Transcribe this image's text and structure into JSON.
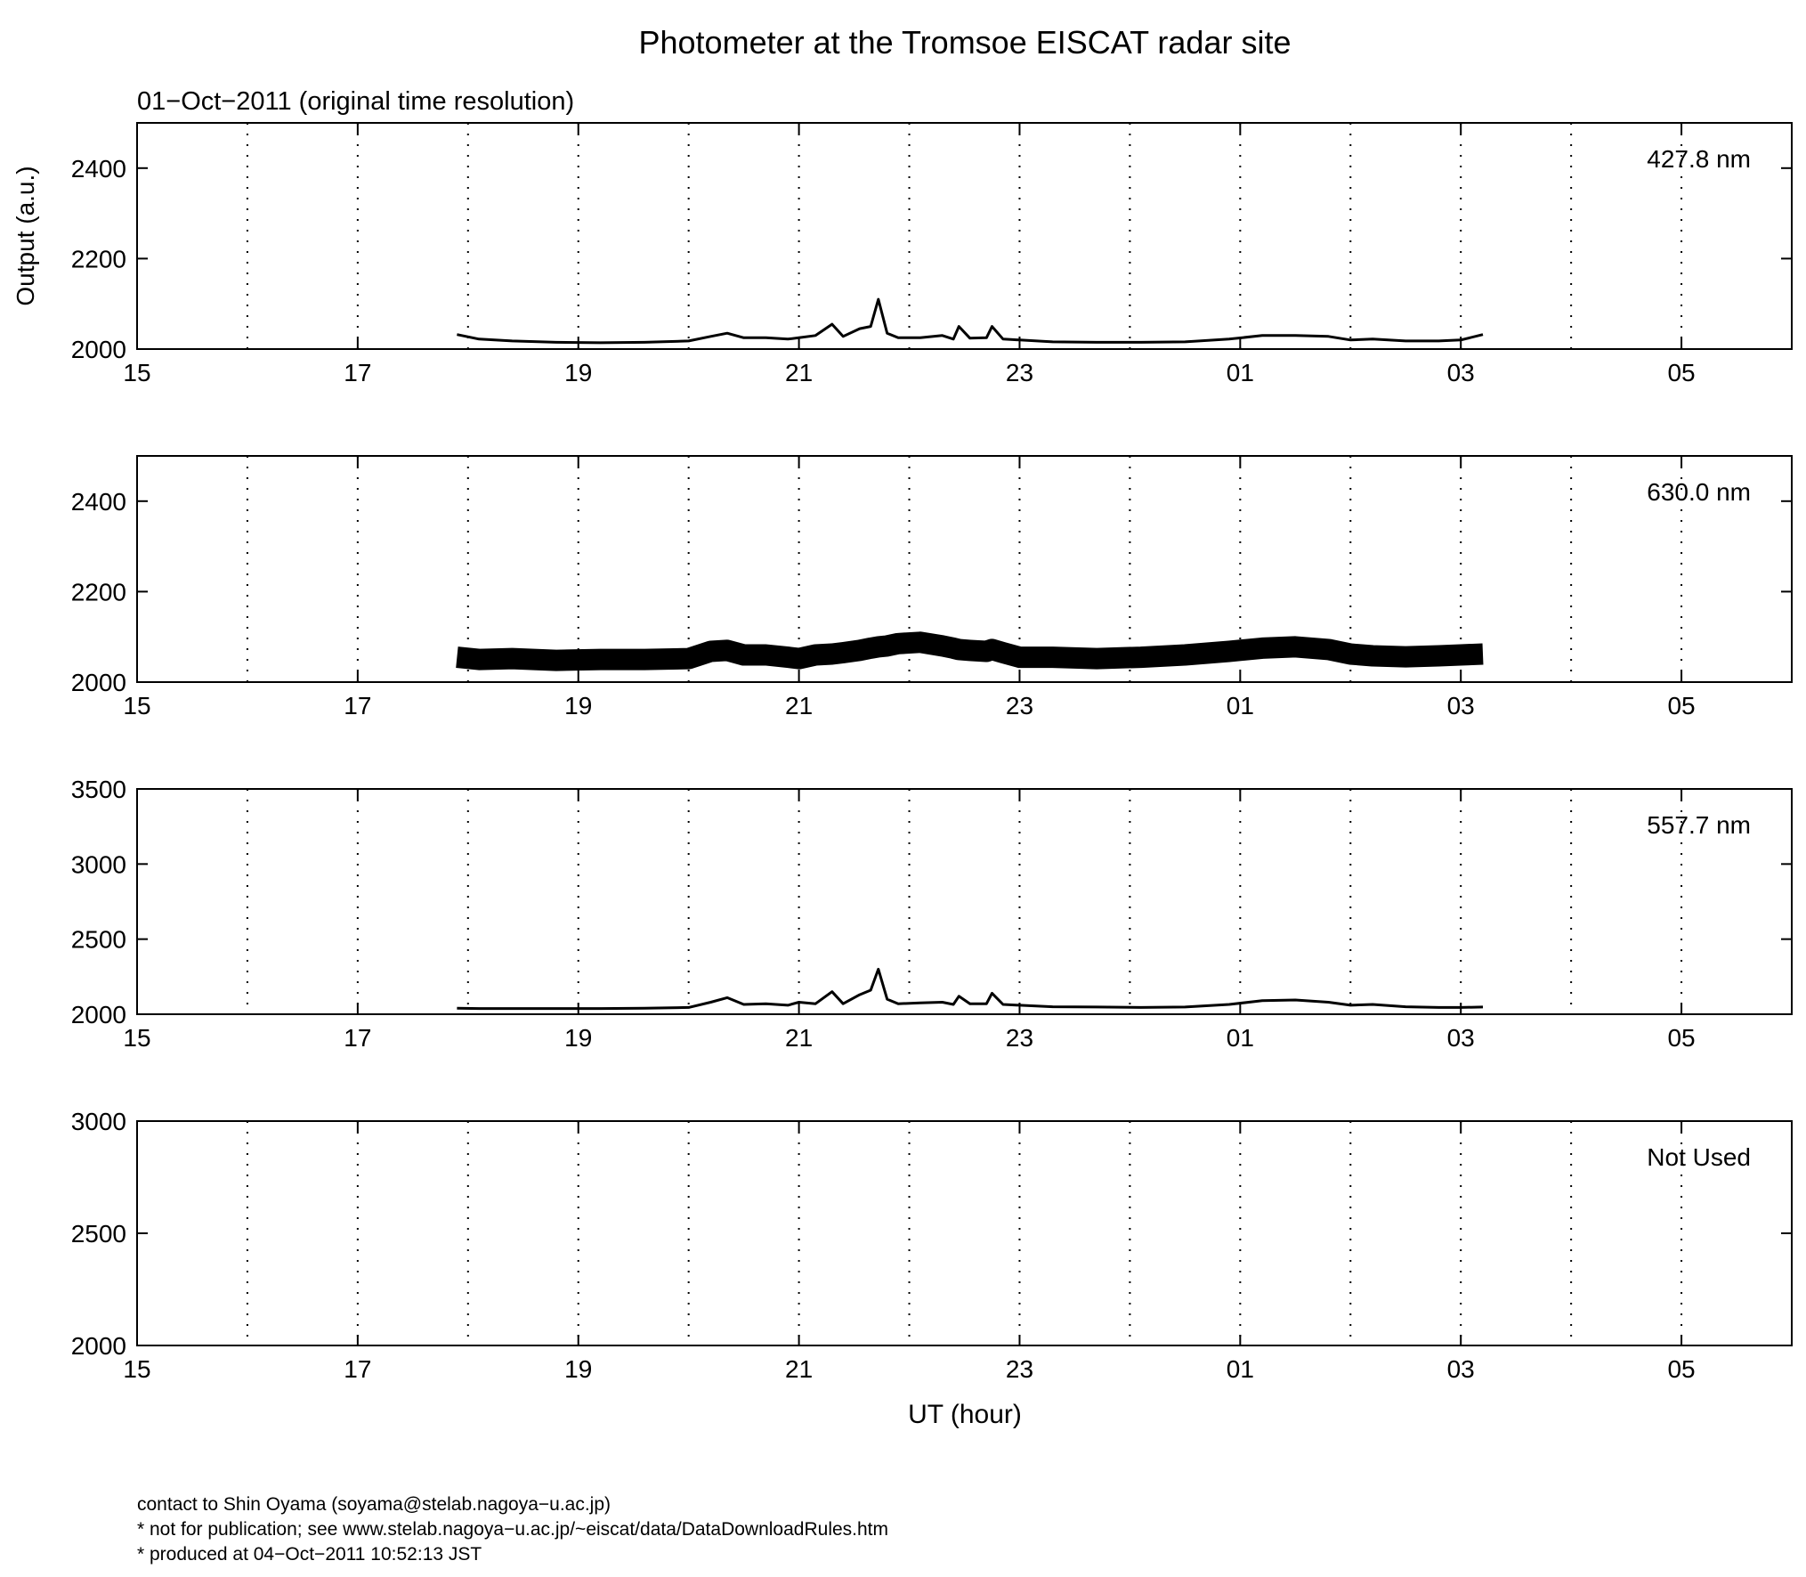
{
  "title": "Photometer at the Tromsoe EISCAT radar site",
  "subtitle": "01−Oct−2011 (original time resolution)",
  "ylabel": "Output (a.u.)",
  "xlabel": "UT (hour)",
  "footer": [
    "contact to Shin Oyama (soyama@stelab.nagoya−u.ac.jp)",
    "* not for publication; see www.stelab.nagoya−u.ac.jp/~eiscat/data/DataDownloadRules.htm",
    "* produced at 04−Oct−2011 10:52:13 JST"
  ],
  "chart_data": [
    {
      "type": "line",
      "label": "427.8 nm",
      "xlim": [
        15,
        30
      ],
      "xticks": [
        15,
        17,
        19,
        21,
        23,
        {
          "value": 25,
          "label": "01"
        },
        {
          "value": 27,
          "label": "03"
        },
        {
          "value": 29,
          "label": "05"
        }
      ],
      "minor_xticks": [
        16,
        18,
        20,
        22,
        24,
        26,
        28
      ],
      "grid": true,
      "ylim": [
        2000,
        2500
      ],
      "yticks": [
        2000,
        2200,
        2400
      ],
      "x": [
        17.9,
        18.1,
        18.4,
        18.8,
        19.2,
        19.6,
        20.0,
        20.2,
        20.35,
        20.5,
        20.7,
        20.9,
        21.0,
        21.15,
        21.3,
        21.4,
        21.55,
        21.65,
        21.72,
        21.8,
        21.9,
        22.1,
        22.3,
        22.4,
        22.45,
        22.55,
        22.7,
        22.75,
        22.85,
        23.0,
        23.3,
        23.7,
        24.1,
        24.5,
        24.9,
        25.2,
        25.5,
        25.8,
        26.0,
        26.2,
        26.5,
        26.8,
        27.0,
        27.2
      ],
      "series": [
        {
          "color": "#000000",
          "values": [
            2032,
            2022,
            2018,
            2015,
            2014,
            2015,
            2018,
            2028,
            2035,
            2025,
            2025,
            2022,
            2025,
            2030,
            2055,
            2028,
            2045,
            2050,
            2110,
            2035,
            2025,
            2025,
            2030,
            2022,
            2050,
            2024,
            2025,
            2050,
            2022,
            2020,
            2016,
            2015,
            2015,
            2016,
            2022,
            2030,
            2030,
            2028,
            2020,
            2022,
            2018,
            2018,
            2020,
            2032
          ]
        }
      ]
    },
    {
      "type": "line",
      "label": "630.0 nm",
      "xlim": [
        15,
        30
      ],
      "xticks": [
        15,
        17,
        19,
        21,
        23,
        {
          "value": 25,
          "label": "01"
        },
        {
          "value": 27,
          "label": "03"
        },
        {
          "value": 29,
          "label": "05"
        }
      ],
      "minor_xticks": [
        16,
        18,
        20,
        22,
        24,
        26,
        28
      ],
      "grid": true,
      "ylim": [
        2000,
        2500
      ],
      "yticks": [
        2000,
        2200,
        2400
      ],
      "x": [
        17.9,
        18.1,
        18.4,
        18.8,
        19.2,
        19.6,
        20.0,
        20.2,
        20.35,
        20.5,
        20.7,
        20.9,
        21.0,
        21.15,
        21.3,
        21.4,
        21.55,
        21.65,
        21.72,
        21.8,
        21.9,
        22.1,
        22.3,
        22.4,
        22.45,
        22.55,
        22.7,
        22.75,
        22.85,
        23.0,
        23.3,
        23.7,
        24.1,
        24.5,
        24.9,
        25.2,
        25.5,
        25.8,
        26.0,
        26.2,
        26.5,
        26.8,
        27.0,
        27.2
      ],
      "series": [
        {
          "color": "#000000",
          "values": [
            2055,
            2050,
            2052,
            2048,
            2050,
            2050,
            2052,
            2068,
            2070,
            2060,
            2060,
            2055,
            2052,
            2060,
            2062,
            2065,
            2070,
            2075,
            2078,
            2080,
            2085,
            2088,
            2080,
            2075,
            2072,
            2070,
            2068,
            2072,
            2065,
            2055,
            2055,
            2052,
            2055,
            2060,
            2068,
            2075,
            2078,
            2072,
            2062,
            2058,
            2056,
            2058,
            2060,
            2062
          ]
        }
      ]
    },
    {
      "type": "line",
      "label": "557.7 nm",
      "xlim": [
        15,
        30
      ],
      "xticks": [
        15,
        17,
        19,
        21,
        23,
        {
          "value": 25,
          "label": "01"
        },
        {
          "value": 27,
          "label": "03"
        },
        {
          "value": 29,
          "label": "05"
        }
      ],
      "minor_xticks": [
        16,
        18,
        20,
        22,
        24,
        26,
        28
      ],
      "grid": true,
      "ylim": [
        2000,
        3500
      ],
      "yticks": [
        2000,
        2500,
        3000,
        3500
      ],
      "x": [
        17.9,
        18.1,
        18.4,
        18.8,
        19.2,
        19.6,
        20.0,
        20.2,
        20.35,
        20.5,
        20.7,
        20.9,
        21.0,
        21.15,
        21.3,
        21.4,
        21.55,
        21.65,
        21.72,
        21.8,
        21.9,
        22.1,
        22.3,
        22.4,
        22.45,
        22.55,
        22.7,
        22.75,
        22.85,
        23.0,
        23.3,
        23.7,
        24.1,
        24.5,
        24.9,
        25.2,
        25.5,
        25.8,
        26.0,
        26.2,
        26.5,
        26.8,
        27.0,
        27.2
      ],
      "series": [
        {
          "color": "#000000",
          "values": [
            2040,
            2038,
            2038,
            2038,
            2038,
            2040,
            2045,
            2080,
            2110,
            2065,
            2070,
            2060,
            2080,
            2070,
            2150,
            2070,
            2130,
            2160,
            2300,
            2100,
            2070,
            2075,
            2080,
            2065,
            2120,
            2070,
            2070,
            2140,
            2065,
            2060,
            2050,
            2048,
            2045,
            2048,
            2065,
            2090,
            2095,
            2080,
            2060,
            2065,
            2050,
            2045,
            2045,
            2048
          ]
        }
      ]
    },
    {
      "type": "line",
      "label": "Not Used",
      "xlim": [
        15,
        30
      ],
      "xticks": [
        15,
        17,
        19,
        21,
        23,
        {
          "value": 25,
          "label": "01"
        },
        {
          "value": 27,
          "label": "03"
        },
        {
          "value": 29,
          "label": "05"
        }
      ],
      "minor_xticks": [
        16,
        18,
        20,
        22,
        24,
        26,
        28
      ],
      "grid": true,
      "ylim": [
        2000,
        3000
      ],
      "yticks": [
        2000,
        2500,
        3000
      ],
      "x": [],
      "series": []
    }
  ]
}
